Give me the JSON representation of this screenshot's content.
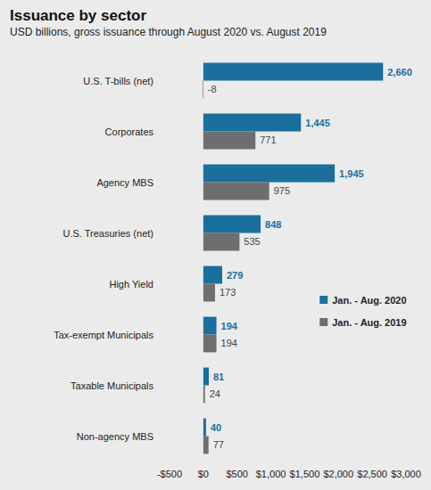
{
  "chart_data": {
    "type": "bar",
    "title": "Issuance by sector",
    "subtitle": "USD billions, gross issuance through August 2020 vs. August 2019",
    "orientation": "horizontal",
    "categories": [
      "U.S. T-bills (net)",
      "Corporates",
      "Agency MBS",
      "U.S. Treasuries (net)",
      "High Yield",
      "Tax-exempt Municipals",
      "Taxable Municipals",
      "Non-agency MBS"
    ],
    "series": [
      {
        "name": "Jan. - Aug. 2020",
        "color": "#1a6f9c",
        "values": [
          2660,
          1445,
          1945,
          848,
          279,
          194,
          81,
          40
        ],
        "value_labels": [
          "2,660",
          "1,445",
          "1,945",
          "848",
          "279",
          "194",
          "81",
          "40"
        ]
      },
      {
        "name": "Jan. - Aug. 2019",
        "color": "#6e6e6e",
        "values": [
          -8,
          771,
          975,
          535,
          173,
          194,
          24,
          77
        ],
        "value_labels": [
          "-8",
          "771",
          "975",
          "535",
          "173",
          "194",
          "24",
          "77"
        ]
      }
    ],
    "xlim": [
      -500,
      3000
    ],
    "xticks": [
      {
        "value": -500,
        "label": "-$500"
      },
      {
        "value": 0,
        "label": "$0"
      },
      {
        "value": 500,
        "label": "$500"
      },
      {
        "value": 1000,
        "label": "$1,000"
      },
      {
        "value": 1500,
        "label": "$1,500"
      },
      {
        "value": 2000,
        "label": "$2,000"
      },
      {
        "value": 2500,
        "label": "$2,500"
      },
      {
        "value": 3000,
        "label": "$3,000"
      }
    ],
    "grid": false,
    "legend": "right",
    "data_labels": true
  }
}
